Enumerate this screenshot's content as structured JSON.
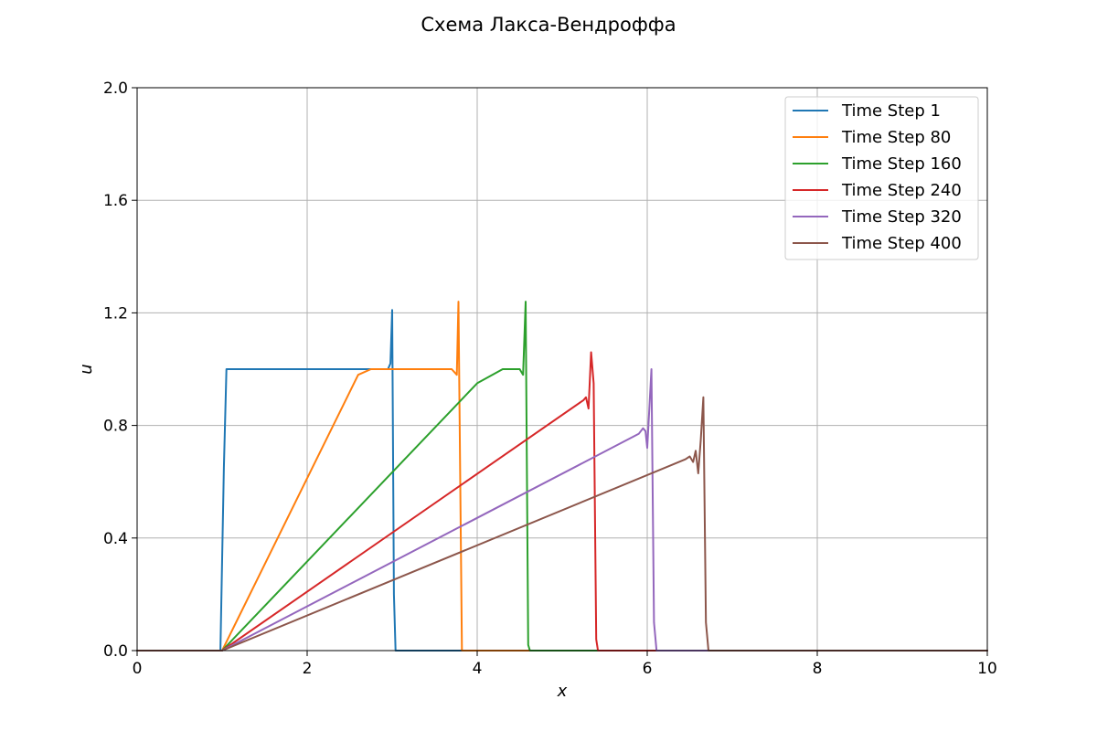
{
  "chart_data": {
    "type": "line",
    "title": "Схема Лакса-Вендроффа",
    "xlabel": "x",
    "ylabel": "u",
    "xlim": [
      0,
      10
    ],
    "ylim": [
      0,
      2.0
    ],
    "xticks": [
      0,
      2,
      4,
      6,
      8,
      10
    ],
    "xtick_labels": [
      "0",
      "2",
      "4",
      "6",
      "8",
      "10"
    ],
    "yticks": [
      0,
      0.4,
      0.8,
      1.2,
      1.6,
      2.0
    ],
    "ytick_labels": [
      "0.0",
      "0.4",
      "0.8",
      "1.2",
      "1.6",
      "2.0"
    ],
    "grid": true,
    "legend_position": "top-right",
    "series": [
      {
        "name": "Time Step 1",
        "color": "#1f77b4",
        "x": [
          0,
          0.98,
          1.02,
          1.05,
          2.95,
          2.98,
          3.0,
          3.02,
          3.04,
          10
        ],
        "y": [
          0,
          0,
          0.65,
          1.0,
          1.0,
          1.02,
          1.21,
          0.2,
          0,
          0
        ]
      },
      {
        "name": "Time Step 80",
        "color": "#ff7f0e",
        "x": [
          0,
          0.98,
          1.0,
          2.6,
          2.75,
          3.7,
          3.76,
          3.78,
          3.82,
          3.84,
          10
        ],
        "y": [
          0,
          0,
          0,
          0.98,
          1.0,
          1.0,
          0.98,
          1.24,
          0,
          0,
          0
        ]
      },
      {
        "name": "Time Step 160",
        "color": "#2ca02c",
        "x": [
          0,
          0.98,
          1.0,
          4.0,
          4.3,
          4.5,
          4.54,
          4.57,
          4.6,
          4.62,
          10
        ],
        "y": [
          0,
          0,
          0,
          0.95,
          1.0,
          1.0,
          0.98,
          1.24,
          0.02,
          0,
          0
        ]
      },
      {
        "name": "Time Step 240",
        "color": "#d62728",
        "x": [
          0,
          0.98,
          1.0,
          5.25,
          5.28,
          5.31,
          5.34,
          5.37,
          5.4,
          5.42,
          10
        ],
        "y": [
          0,
          0,
          0,
          0.89,
          0.9,
          0.86,
          1.06,
          0.95,
          0.04,
          0,
          0
        ]
      },
      {
        "name": "Time Step 320",
        "color": "#9467bd",
        "x": [
          0,
          0.98,
          1.0,
          5.9,
          5.95,
          5.98,
          6.0,
          6.05,
          6.08,
          6.11,
          10
        ],
        "y": [
          0,
          0,
          0,
          0.77,
          0.79,
          0.78,
          0.72,
          1.0,
          0.1,
          0,
          0
        ]
      },
      {
        "name": "Time Step 400",
        "color": "#8c564b",
        "x": [
          0,
          0.98,
          1.0,
          6.45,
          6.5,
          6.54,
          6.57,
          6.6,
          6.63,
          6.66,
          6.69,
          6.72,
          10
        ],
        "y": [
          0,
          0,
          0,
          0.68,
          0.69,
          0.67,
          0.71,
          0.63,
          0.75,
          0.9,
          0.1,
          0,
          0
        ]
      }
    ]
  }
}
